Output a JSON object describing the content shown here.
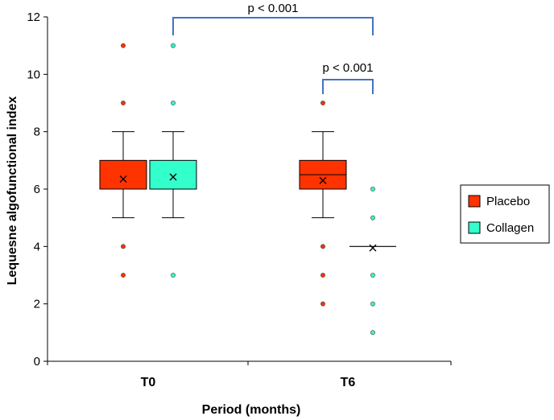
{
  "colors": {
    "placebo": "#ff3300",
    "collagen": "#33ffcc",
    "bracket": "#4472c4",
    "line": "#000000"
  },
  "chart_data": {
    "type": "box",
    "title": "",
    "xlabel": "Period (months)",
    "ylabel": "Lequesne algofunctional index",
    "ylim": [
      0,
      12
    ],
    "yticks": [
      "0",
      "2",
      "4",
      "6",
      "8",
      "10",
      "12"
    ],
    "categories": [
      "T0",
      "T6"
    ],
    "legend": {
      "position": "right",
      "entries": [
        "Placebo",
        "Collagen"
      ]
    },
    "series": [
      {
        "name": "Placebo",
        "boxes": [
          {
            "category": "T0",
            "q1": 6,
            "median": 6,
            "q3": 7,
            "whisker_low": 5,
            "whisker_high": 8,
            "mean": 6.35,
            "outliers": [
              3,
              4,
              9,
              11
            ]
          },
          {
            "category": "T6",
            "q1": 6,
            "median": 6.5,
            "q3": 7,
            "whisker_low": 5,
            "whisker_high": 8,
            "mean": 6.3,
            "outliers": [
              2,
              3,
              4,
              9
            ]
          }
        ]
      },
      {
        "name": "Collagen",
        "boxes": [
          {
            "category": "T0",
            "q1": 6,
            "median": 6,
            "q3": 7,
            "whisker_low": 5,
            "whisker_high": 8,
            "mean": 6.42,
            "outliers": [
              3,
              9,
              11
            ]
          },
          {
            "category": "T6",
            "q1": 4,
            "median": 4,
            "q3": 4,
            "whisker_low": 4,
            "whisker_high": 4,
            "mean": 3.95,
            "outliers": [
              1,
              2,
              3,
              5,
              6
            ]
          }
        ]
      }
    ],
    "annotations": [
      {
        "text": "p < 0.001",
        "from": "Collagen T0",
        "to": "Collagen T6"
      },
      {
        "text": "p < 0.001",
        "from": "Placebo T6",
        "to": "Collagen T6"
      }
    ]
  }
}
